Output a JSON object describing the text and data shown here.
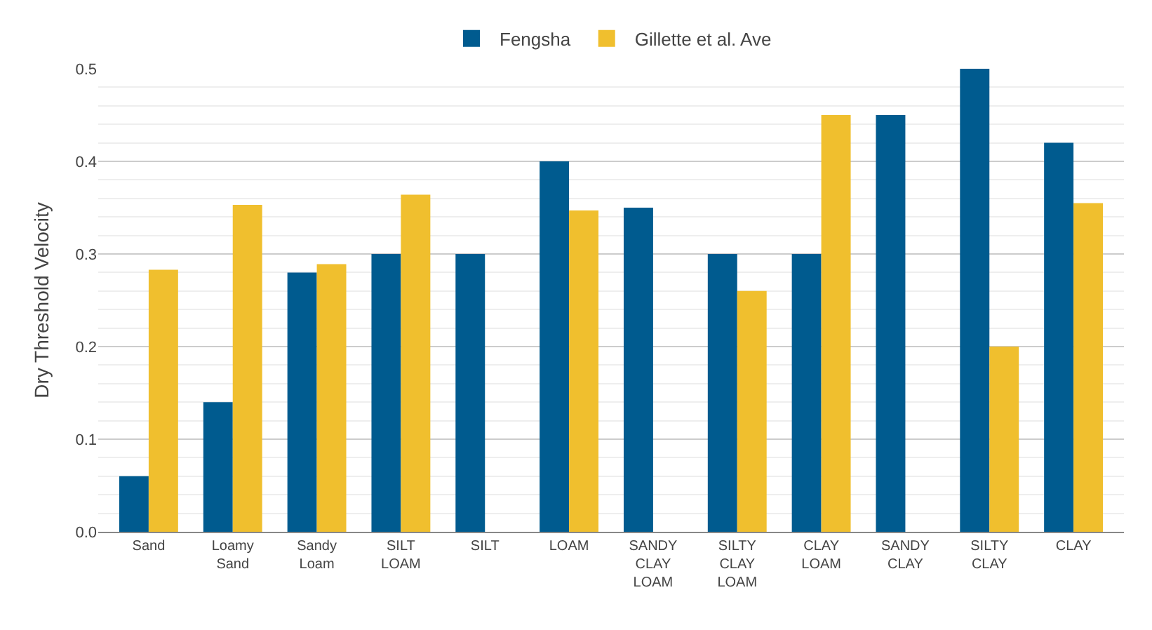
{
  "chart_data": {
    "type": "bar",
    "ylabel": "Dry Threshold Velocity",
    "categories": [
      "Sand",
      "Loamy\nSand",
      "Sandy\nLoam",
      "SILT\nLOAM",
      "SILT",
      "LOAM",
      "SANDY\nCLAY\nLOAM",
      "SILTY\nCLAY\nLOAM",
      "CLAY\nLOAM",
      "SANDY\nCLAY",
      "SILTY\nCLAY",
      "CLAY"
    ],
    "series": [
      {
        "name": "Fengsha",
        "color": "#005b8f",
        "values": [
          0.06,
          0.14,
          0.28,
          0.3,
          0.3,
          0.4,
          0.35,
          0.3,
          0.3,
          0.45,
          0.5,
          0.42
        ]
      },
      {
        "name": "Gillette et al. Ave",
        "color": "#f0bf2e",
        "values": [
          0.283,
          0.353,
          0.289,
          0.364,
          null,
          0.347,
          null,
          0.26,
          0.45,
          null,
          0.2,
          0.355
        ]
      }
    ],
    "ylim": [
      0,
      0.5
    ],
    "yticks": [
      {
        "value": 0,
        "label": "0.0"
      },
      0.1,
      0.2,
      0.3,
      0.4,
      0.5
    ],
    "grid": "y",
    "legend": "top"
  }
}
